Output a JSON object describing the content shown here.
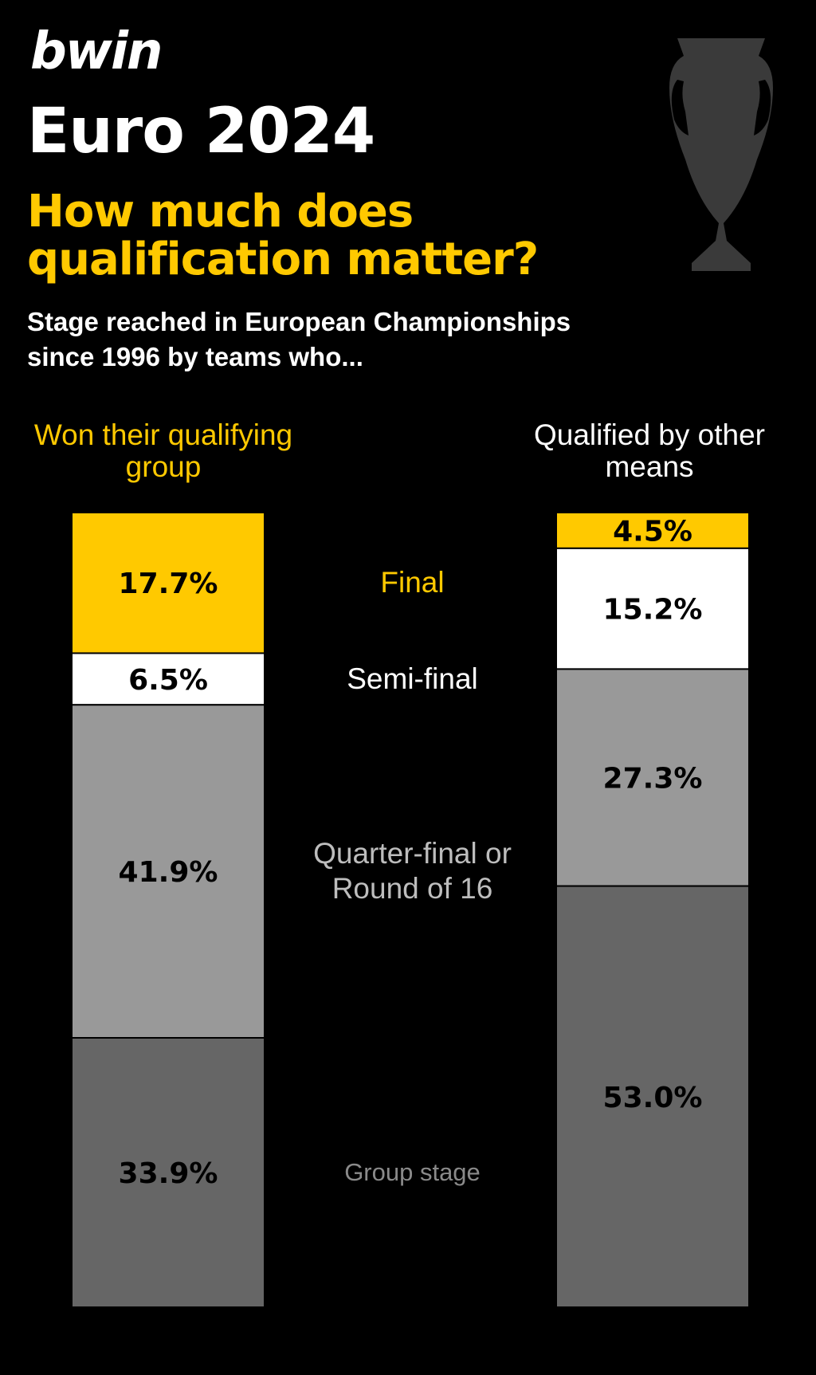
{
  "brand": "bwin",
  "title": "Euro 2024",
  "subtitle": "How much does qualification matter?",
  "description": "Stage reached in European Championships since 1996 by teams who...",
  "colors": {
    "accent": "#ffc900",
    "final": "#ffc900",
    "semi": "#ffffff",
    "quarter": "#999999",
    "group": "#666666",
    "trophy": "#3a3a3a"
  },
  "chart_data": {
    "type": "bar",
    "stacked": true,
    "normalized": true,
    "categories": [
      "Won their qualifying group",
      "Qualified by other means"
    ],
    "series": [
      {
        "name": "Final",
        "values": [
          17.7,
          4.5
        ],
        "labels": [
          "17.7%",
          "4.5%"
        ]
      },
      {
        "name": "Semi-final",
        "values": [
          6.5,
          15.2
        ],
        "labels": [
          "6.5%",
          "15.2%"
        ]
      },
      {
        "name": "Quarter-final or Round of 16",
        "values": [
          41.9,
          27.3
        ],
        "labels": [
          "41.9%",
          "27.3%"
        ]
      },
      {
        "name": "Group stage",
        "values": [
          33.9,
          53.0
        ],
        "labels": [
          "33.9%",
          "53.0%"
        ]
      }
    ],
    "ylim": [
      0,
      100
    ]
  }
}
